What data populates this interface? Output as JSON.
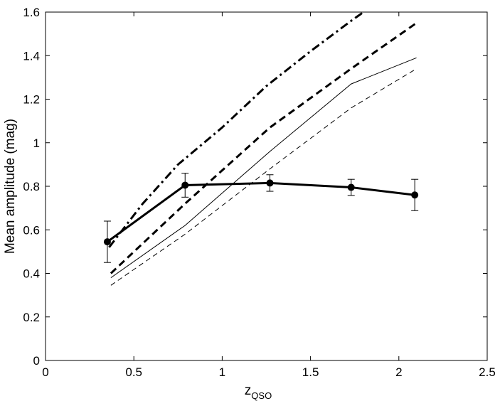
{
  "chart_data": {
    "type": "line",
    "title": "",
    "xlabel": "z",
    "xlabel_subscript": "QSO",
    "ylabel": "Mean amplitude (mag)",
    "xlim": [
      0,
      2.5
    ],
    "ylim": [
      0,
      1.6
    ],
    "xticks": [
      0,
      0.5,
      1,
      1.5,
      2,
      2.5
    ],
    "yticks": [
      0,
      0.2,
      0.4,
      0.6,
      0.8,
      1,
      1.2,
      1.4,
      1.6
    ],
    "xtick_labels": [
      "0",
      "0.5",
      "1",
      "1.5",
      "2",
      "2.5"
    ],
    "ytick_labels": [
      "0",
      "0.2",
      "0.4",
      "0.6",
      "0.8",
      "1",
      "1.2",
      "1.4",
      "1.6"
    ],
    "grid": false,
    "legend": "none",
    "series": [
      {
        "style": "thick-solid-markers",
        "x": [
          0.35,
          0.79,
          1.27,
          1.73,
          2.09
        ],
        "y": [
          0.545,
          0.805,
          0.815,
          0.795,
          0.76
        ],
        "err": [
          0.095,
          0.055,
          0.038,
          0.037,
          0.072
        ]
      },
      {
        "style": "dash-dot-thick",
        "x": [
          0.36,
          0.55,
          0.75,
          1.0,
          1.25,
          1.5,
          1.73,
          1.8
        ],
        "y": [
          0.52,
          0.72,
          0.9,
          1.07,
          1.26,
          1.42,
          1.56,
          1.6
        ]
      },
      {
        "style": "dashed-thick",
        "x": [
          0.37,
          0.79,
          1.27,
          1.73,
          2.1
        ],
        "y": [
          0.4,
          0.72,
          1.07,
          1.34,
          1.55
        ]
      },
      {
        "style": "solid-thin",
        "x": [
          0.37,
          0.79,
          1.27,
          1.73,
          2.1
        ],
        "y": [
          0.38,
          0.62,
          0.96,
          1.27,
          1.39
        ]
      },
      {
        "style": "dashed-thin",
        "x": [
          0.37,
          0.79,
          1.27,
          1.73,
          2.1
        ],
        "y": [
          0.345,
          0.58,
          0.88,
          1.16,
          1.34
        ]
      }
    ]
  }
}
